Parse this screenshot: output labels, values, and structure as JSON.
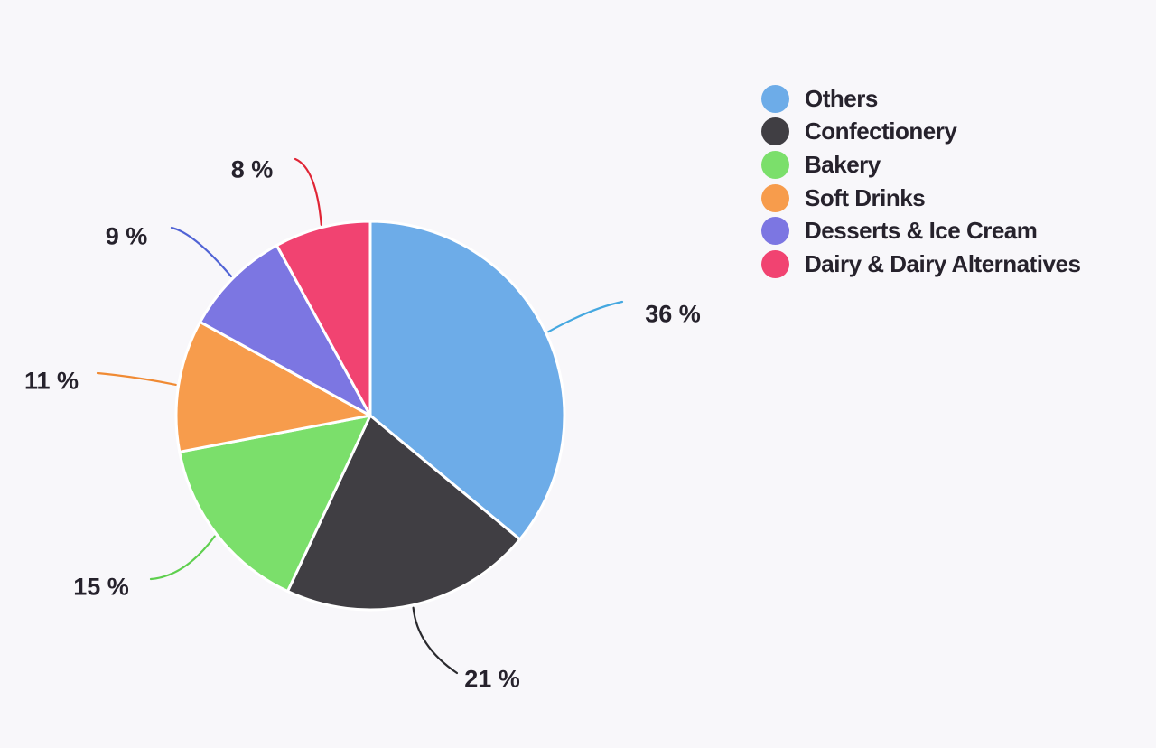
{
  "background": "#f8f7fa",
  "text_color": "#26222c",
  "chart_data": {
    "type": "pie",
    "title": "",
    "unit": "%",
    "legend_position": "top-right",
    "start_angle_deg": 0,
    "slices": [
      {
        "label": "Others",
        "value": 36,
        "display": "36 %",
        "color": "#6dace8",
        "line_color": "#45a8e0"
      },
      {
        "label": "Confectionery",
        "value": 21,
        "display": "21 %",
        "color": "#403e43",
        "line_color": "#2a2a2e"
      },
      {
        "label": "Bakery",
        "value": 15,
        "display": "15 %",
        "color": "#7bdf6b",
        "line_color": "#5ecf4e"
      },
      {
        "label": "Soft Drinks",
        "value": 11,
        "display": "11 %",
        "color": "#f79c4c",
        "line_color": "#f08a33"
      },
      {
        "label": "Desserts & Ice Cream",
        "value": 9,
        "display": "9 %",
        "color": "#7c76e2",
        "line_color": "#5063d5"
      },
      {
        "label": "Dairy & Dairy Alternatives",
        "value": 8,
        "display": "8 %",
        "color": "#f14371",
        "line_color": "#e02535"
      }
    ]
  }
}
